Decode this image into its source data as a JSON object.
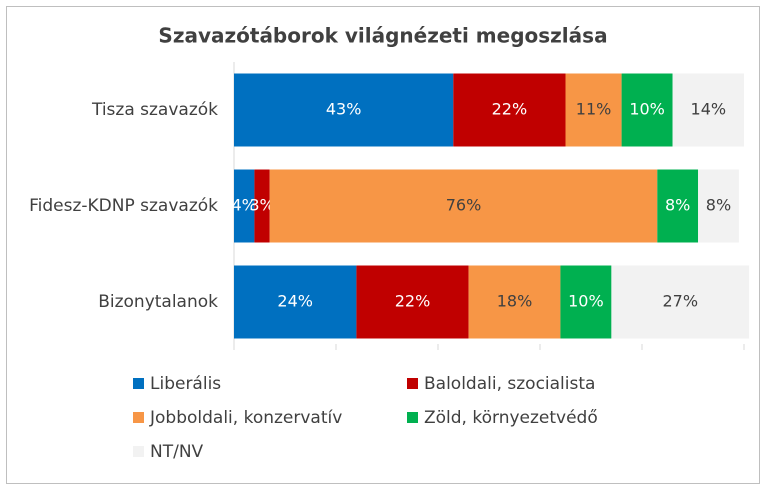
{
  "chart_data": {
    "type": "stacked-barh",
    "title": "Szavazótáborok világnézeti megoszlása",
    "categories": [
      "Tisza szavazók",
      "Fidesz-KDNP szavazók",
      "Bizonytalanok"
    ],
    "series": [
      {
        "name": "Liberális",
        "color": "#0070c0",
        "values": [
          43,
          4,
          24
        ],
        "value_labels": [
          "43%",
          "4%",
          "24%"
        ]
      },
      {
        "name": "Baloldali, szocialista",
        "color": "#c00000",
        "values": [
          22,
          3,
          22
        ],
        "value_labels": [
          "22%",
          "3%",
          "22%"
        ]
      },
      {
        "name": "Jobboldali, konzervatív",
        "color": "#f79646",
        "values": [
          11,
          76,
          18
        ],
        "value_labels": [
          "11%",
          "76%",
          "18%"
        ]
      },
      {
        "name": "Zöld, környezetvédő",
        "color": "#00b050",
        "values": [
          10,
          8,
          10
        ],
        "value_labels": [
          "10%",
          "8%",
          "10%"
        ]
      },
      {
        "name": "NT/NV",
        "color": "#f2f2f2",
        "values": [
          14,
          8,
          27
        ],
        "value_labels": [
          "14%",
          "8%",
          "27%"
        ]
      }
    ],
    "xlim": [
      0,
      100
    ],
    "xticks": [
      0,
      20,
      40,
      60,
      80,
      100
    ]
  }
}
